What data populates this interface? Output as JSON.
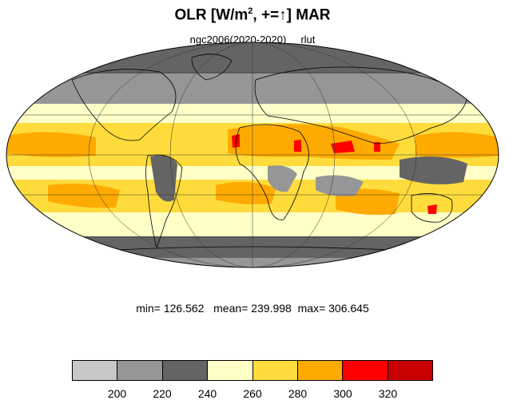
{
  "title": {
    "main": "OLR [W/m",
    "sup": "2",
    "rest": ", +=↑] MAR"
  },
  "subtitle": {
    "left": "ngc2006(2020-2020)",
    "right": "rlut"
  },
  "stats": {
    "min_label": "min=",
    "min": "126.562",
    "mean_label": "mean=",
    "mean": "239.998",
    "max_label": "max=",
    "max": "306.645"
  },
  "colorbar": {
    "colors": [
      "#c8c8c8",
      "#969696",
      "#646464",
      "#ffffc8",
      "#ffdc3c",
      "#ffaa00",
      "#ff0000",
      "#c80000"
    ],
    "labels": [
      "200",
      "220",
      "240",
      "260",
      "280",
      "300",
      "320"
    ]
  },
  "map": {
    "projection": "Mollweide",
    "ocean_color": "#c8c8c8"
  }
}
